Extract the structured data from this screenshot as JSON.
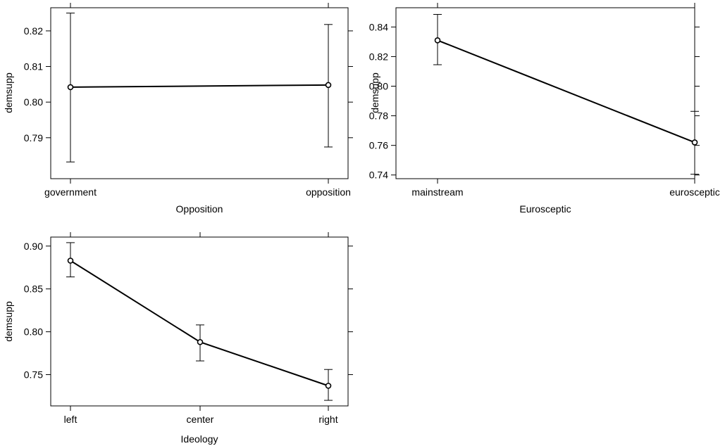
{
  "chart_data": [
    {
      "type": "line",
      "xlabel": "Opposition",
      "ylabel": "demsupp",
      "categories": [
        "government",
        "opposition"
      ],
      "values": [
        0.8042,
        0.8048
      ],
      "lower": [
        0.7832,
        0.7874
      ],
      "upper": [
        0.825,
        0.8218
      ],
      "ylim": [
        0.7785,
        0.8265
      ],
      "yticks": [
        0.79,
        0.8,
        0.81,
        0.82
      ],
      "ytick_labels": [
        "0.79",
        "0.80",
        "0.81",
        "0.82"
      ],
      "grid": false
    },
    {
      "type": "line",
      "xlabel": "Eurosceptic",
      "ylabel": "demsupp",
      "categories": [
        "mainstream",
        "eurosceptic"
      ],
      "values": [
        0.831,
        0.762
      ],
      "lower": [
        0.8145,
        0.7405
      ],
      "upper": [
        0.8485,
        0.783
      ],
      "ylim": [
        0.7375,
        0.853
      ],
      "yticks": [
        0.74,
        0.76,
        0.78,
        0.8,
        0.82,
        0.84
      ],
      "ytick_labels": [
        "0.74",
        "0.76",
        "0.78",
        "0.80",
        "0.82",
        "0.84"
      ],
      "grid": false
    },
    {
      "type": "line",
      "xlabel": "Ideology",
      "ylabel": "demsupp",
      "categories": [
        "left",
        "center",
        "right"
      ],
      "values": [
        0.883,
        0.788,
        0.737
      ],
      "lower": [
        0.864,
        0.766,
        0.72
      ],
      "upper": [
        0.904,
        0.808,
        0.756
      ],
      "ylim": [
        0.7135,
        0.9105
      ],
      "yticks": [
        0.75,
        0.8,
        0.85,
        0.9
      ],
      "ytick_labels": [
        "0.75",
        "0.80",
        "0.85",
        "0.90"
      ],
      "grid": false
    }
  ]
}
